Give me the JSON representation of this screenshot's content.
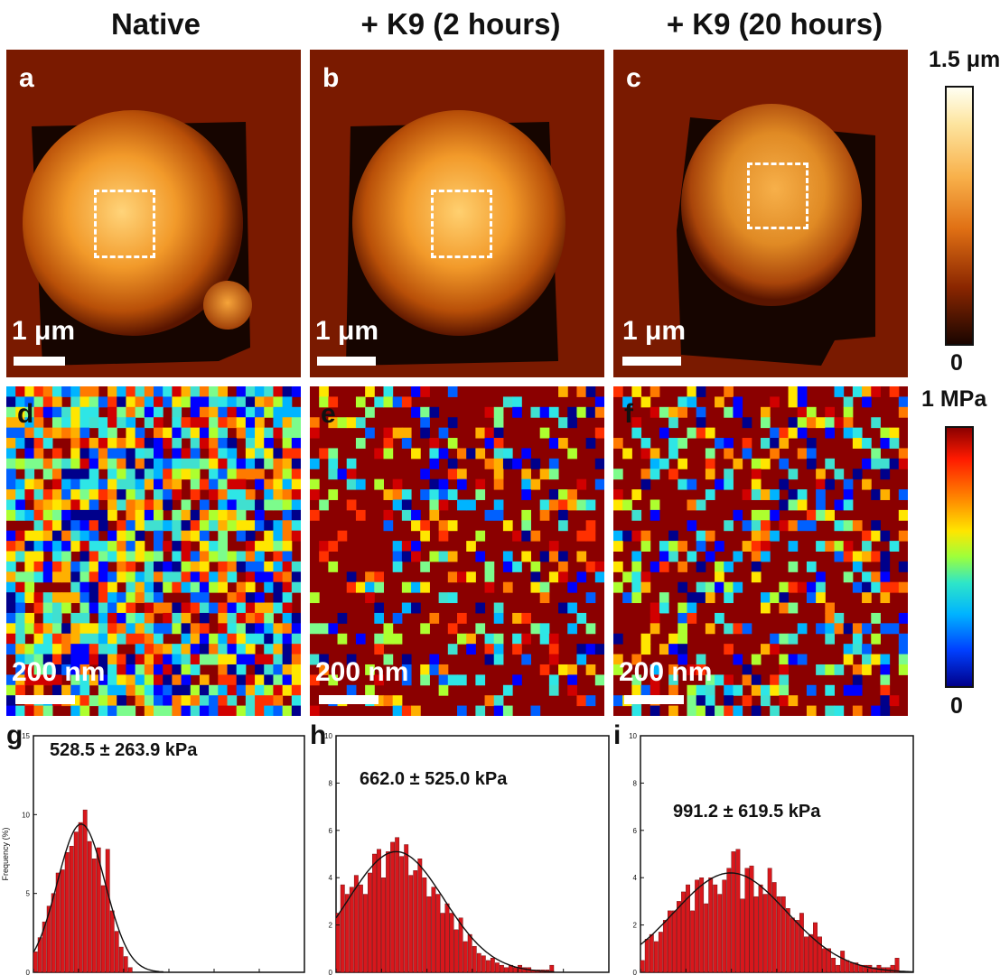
{
  "columns": [
    {
      "title": "Native"
    },
    {
      "title": "+ K9 (2 hours)"
    },
    {
      "title": "+ K9 (20 hours)"
    }
  ],
  "topography": {
    "panels": [
      {
        "label": "a",
        "scale": "1 μm"
      },
      {
        "label": "b",
        "scale": "1 μm"
      },
      {
        "label": "c",
        "scale": "1 μm"
      }
    ],
    "colorbar": {
      "max": "1.5 μm",
      "min": "0"
    },
    "colors": {
      "background": "#7a1a00",
      "dark": "#150400",
      "bright": "#f7a93e"
    }
  },
  "modulus_maps": {
    "panels": [
      {
        "label": "d",
        "scale": "200 nm",
        "fraction_filled_red": 0.12
      },
      {
        "label": "e",
        "scale": "200 nm",
        "fraction_filled_red": 0.68
      },
      {
        "label": "f",
        "scale": "200 nm",
        "fraction_filled_red": 0.6
      }
    ],
    "colorbar": {
      "max": "1 MPa",
      "min": "0"
    }
  },
  "chart_data": [
    {
      "type": "bar",
      "panel": "g",
      "annotation": "528.5 ± 263.9 kPa",
      "ylabel": "Frequency (%)",
      "xlim": [
        0,
        3000
      ],
      "ylim": [
        0,
        15
      ],
      "xticks": [
        "0",
        "500",
        "1000",
        "1500",
        "2000",
        "2500",
        "3000"
      ],
      "yticks": [
        "0",
        "5",
        "10",
        "15"
      ],
      "bin_width": 50,
      "x": [
        25,
        75,
        125,
        175,
        225,
        275,
        325,
        375,
        425,
        475,
        525,
        575,
        625,
        675,
        725,
        775,
        825,
        875,
        925,
        975,
        1025,
        1075
      ],
      "values": [
        1.3,
        2.2,
        3.2,
        4.2,
        5.0,
        6.3,
        6.5,
        7.6,
        8.0,
        8.9,
        9.5,
        10.3,
        8.3,
        7.2,
        7.9,
        5.5,
        7.8,
        3.9,
        2.6,
        1.6,
        1.0,
        0.3
      ],
      "fit_mean": 528.5,
      "fit_sd": 263.9,
      "fit_peak": 9.4,
      "bar_color": "#d8171c"
    },
    {
      "type": "bar",
      "panel": "h",
      "annotation": "662.0 ± 525.0 kPa",
      "xlim": [
        0,
        3000
      ],
      "ylim": [
        0,
        10
      ],
      "xticks": [
        "0",
        "500",
        "1000",
        "1500",
        "2000",
        "2500",
        "3000"
      ],
      "yticks": [
        "0",
        "2",
        "4",
        "6",
        "8",
        "10"
      ],
      "bin_width": 50,
      "x": [
        25,
        75,
        125,
        175,
        225,
        275,
        325,
        375,
        425,
        475,
        525,
        575,
        625,
        675,
        725,
        775,
        825,
        875,
        925,
        975,
        1025,
        1075,
        1125,
        1175,
        1225,
        1275,
        1325,
        1375,
        1425,
        1475,
        1525,
        1575,
        1625,
        1675,
        1725,
        1775,
        1825,
        1875,
        1925,
        1975,
        2025,
        2075,
        2125,
        2175,
        2225,
        2275,
        2325,
        2375
      ],
      "values": [
        2.5,
        3.7,
        3.3,
        3.6,
        4.1,
        3.7,
        3.3,
        4.2,
        5.0,
        5.2,
        4.0,
        5.1,
        5.5,
        5.7,
        4.9,
        5.4,
        4.1,
        4.3,
        4.8,
        4.0,
        3.2,
        3.6,
        3.3,
        2.5,
        2.9,
        2.5,
        1.8,
        2.3,
        1.3,
        1.6,
        1.1,
        0.8,
        0.7,
        0.5,
        0.6,
        0.4,
        0.3,
        0.2,
        0.3,
        0.2,
        0.3,
        0.2,
        0.2,
        0.1,
        0.1,
        0.1,
        0.1,
        0.3
      ],
      "fit_mean": 662.0,
      "fit_sd": 525.0,
      "fit_peak": 5.1,
      "bar_color": "#d8171c"
    },
    {
      "type": "bar",
      "panel": "i",
      "annotation": "991.2 ± 619.5 kPa",
      "xlim": [
        0,
        3000
      ],
      "ylim": [
        0,
        10
      ],
      "xticks": [
        "0",
        "500",
        "1000",
        "1500",
        "2000",
        "2500",
        "3000"
      ],
      "yticks": [
        "0",
        "2",
        "4",
        "6",
        "8",
        "10"
      ],
      "bin_width": 50,
      "x": [
        25,
        75,
        125,
        175,
        225,
        275,
        325,
        375,
        425,
        475,
        525,
        575,
        625,
        675,
        725,
        775,
        825,
        875,
        925,
        975,
        1025,
        1075,
        1125,
        1175,
        1225,
        1275,
        1325,
        1375,
        1425,
        1475,
        1525,
        1575,
        1625,
        1675,
        1725,
        1775,
        1825,
        1875,
        1925,
        1975,
        2025,
        2075,
        2125,
        2175,
        2225,
        2275,
        2325,
        2375,
        2425,
        2475,
        2525,
        2575,
        2625,
        2675,
        2725,
        2775,
        2825
      ],
      "values": [
        0.5,
        1.4,
        1.6,
        1.3,
        1.7,
        2.2,
        2.6,
        2.6,
        3.0,
        3.4,
        3.7,
        2.6,
        3.9,
        4.0,
        2.9,
        4.0,
        3.7,
        3.3,
        3.9,
        4.4,
        5.1,
        5.2,
        3.1,
        4.4,
        4.5,
        3.2,
        3.7,
        3.3,
        4.4,
        3.8,
        3.2,
        3.2,
        2.7,
        2.3,
        2.2,
        2.5,
        1.5,
        1.6,
        2.1,
        1.5,
        1.0,
        1.0,
        0.6,
        0.3,
        0.9,
        0.5,
        0.4,
        0.4,
        0.3,
        0.3,
        0.3,
        0.2,
        0.3,
        0.2,
        0.2,
        0.3,
        0.6
      ],
      "fit_mean": 991.2,
      "fit_sd": 619.5,
      "fit_peak": 4.2,
      "bar_color": "#d8171c"
    }
  ]
}
